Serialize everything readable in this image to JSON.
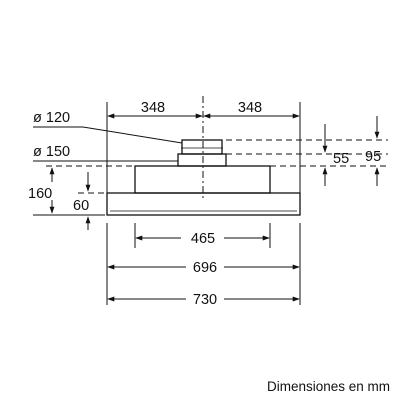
{
  "diagram": {
    "caption": "Dimensiones en mm",
    "labels": {
      "dia_120": "ø 120",
      "dia_150": "ø 150",
      "top_left": "348",
      "top_right": "348",
      "right_55": "55",
      "right_95": "95",
      "left_160": "160",
      "left_60": "60",
      "bottom_465": "465",
      "bottom_696": "696",
      "bottom_730": "730"
    }
  }
}
